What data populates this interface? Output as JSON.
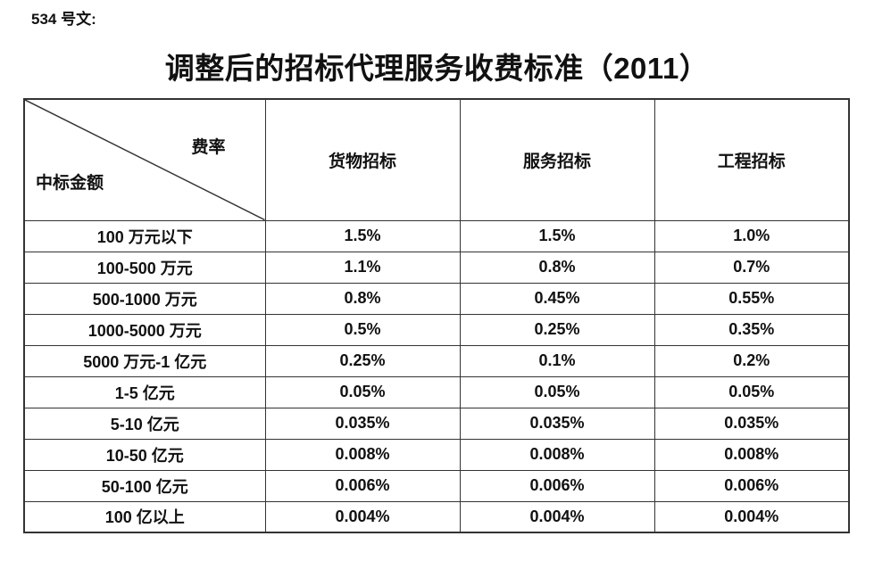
{
  "doc": {
    "doc_number": "534 号文:",
    "title": "调整后的招标代理服务收费标准（2011）"
  },
  "table": {
    "corner": {
      "top_right": "费率",
      "bottom_left": "中标金额"
    },
    "columns": [
      "货物招标",
      "服务招标",
      "工程招标"
    ],
    "rows": [
      {
        "label": "100 万元以下",
        "values": [
          "1.5%",
          "1.5%",
          "1.0%"
        ]
      },
      {
        "label": "100-500 万元",
        "values": [
          "1.1%",
          "0.8%",
          "0.7%"
        ]
      },
      {
        "label": "500-1000 万元",
        "values": [
          "0.8%",
          "0.45%",
          "0.55%"
        ]
      },
      {
        "label": "1000-5000 万元",
        "values": [
          "0.5%",
          "0.25%",
          "0.35%"
        ]
      },
      {
        "label": "5000 万元-1 亿元",
        "values": [
          "0.25%",
          "0.1%",
          "0.2%"
        ]
      },
      {
        "label": "1-5 亿元",
        "values": [
          "0.05%",
          "0.05%",
          "0.05%"
        ]
      },
      {
        "label": "5-10 亿元",
        "values": [
          "0.035%",
          "0.035%",
          "0.035%"
        ]
      },
      {
        "label": "10-50 亿元",
        "values": [
          "0.008%",
          "0.008%",
          "0.008%"
        ]
      },
      {
        "label": "50-100 亿元",
        "values": [
          "0.006%",
          "0.006%",
          "0.006%"
        ]
      },
      {
        "label": "100 亿以上",
        "values": [
          "0.004%",
          "0.004%",
          "0.004%"
        ]
      }
    ],
    "border_color": "#333333"
  }
}
